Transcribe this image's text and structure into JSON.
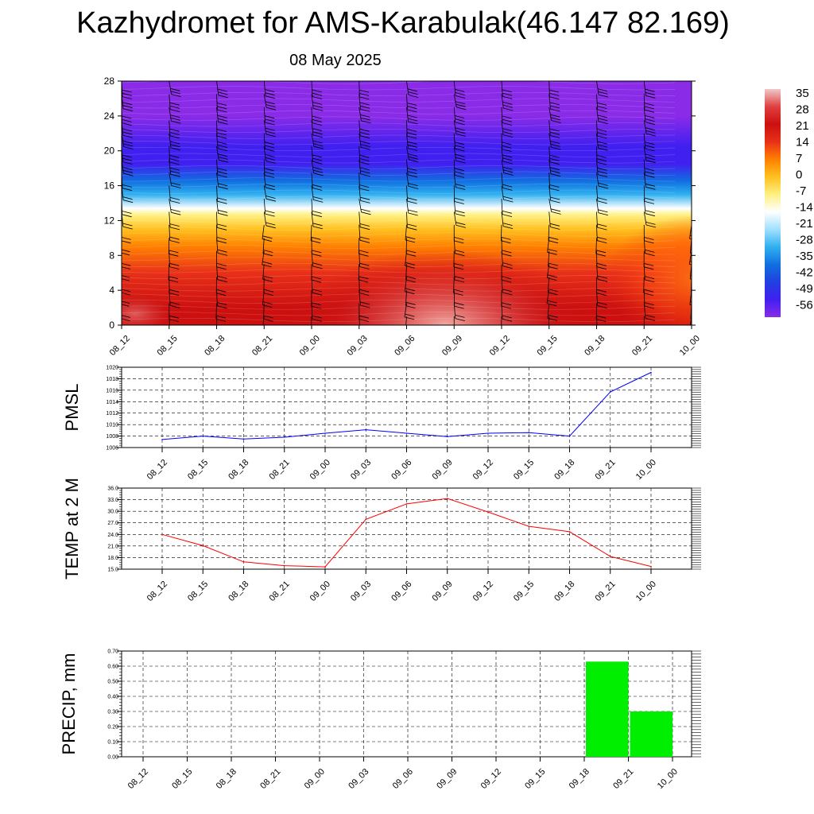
{
  "header": {
    "title": "Kazhydromet for AMS-Karabulak(46.147 82.169)",
    "subtitle": "08 May 2025"
  },
  "chart_data": [
    {
      "type": "heatmap",
      "title": "",
      "xlabel": "",
      "ylabel": "",
      "x_ticks": [
        "08_12",
        "08_15",
        "08_18",
        "08_21",
        "09_00",
        "09_03",
        "09_06",
        "09_09",
        "09_12",
        "09_15",
        "09_18",
        "09_21",
        "10_00"
      ],
      "y_ticks": [
        0,
        4,
        8,
        12,
        16,
        20,
        24,
        28
      ],
      "ylim": [
        0,
        28
      ],
      "colorbar": {
        "labels": [
          "35",
          "28",
          "21",
          "14",
          "7",
          "0",
          "-7",
          "-14",
          "-21",
          "-28",
          "-35",
          "-42",
          "-49",
          "-56"
        ],
        "stops": [
          {
            "value": 35,
            "color": "#f0c8c8"
          },
          {
            "value": 28,
            "color": "#e04040"
          },
          {
            "value": 21,
            "color": "#cc1010"
          },
          {
            "value": 14,
            "color": "#e83018"
          },
          {
            "value": 7,
            "color": "#ff8000"
          },
          {
            "value": 0,
            "color": "#ffc020"
          },
          {
            "value": -7,
            "color": "#fff080"
          },
          {
            "value": -14,
            "color": "#ffffff"
          },
          {
            "value": -21,
            "color": "#a0e0ff"
          },
          {
            "value": -28,
            "color": "#30b0f0"
          },
          {
            "value": -35,
            "color": "#1070e0"
          },
          {
            "value": -42,
            "color": "#2040e0"
          },
          {
            "value": -49,
            "color": "#4020f0"
          },
          {
            "value": -56,
            "color": "#8a2be8"
          }
        ]
      },
      "profile": [
        {
          "h": 0,
          "v": 24
        },
        {
          "h": 2,
          "v": 22
        },
        {
          "h": 6,
          "v": 17
        },
        {
          "h": 9,
          "v": 10
        },
        {
          "h": 11,
          "v": 0
        },
        {
          "h": 12.6,
          "v": -9
        },
        {
          "h": 13.4,
          "v": -15
        },
        {
          "h": 15,
          "v": -25
        },
        {
          "h": 16.5,
          "v": -35
        },
        {
          "h": 18.5,
          "v": -46
        },
        {
          "h": 20.5,
          "v": -52
        },
        {
          "h": 24,
          "v": -56
        },
        {
          "h": 28,
          "v": -57
        }
      ],
      "wind_barbs": true
    },
    {
      "type": "line",
      "ylabel": "PMSL",
      "categories": [
        "08_12",
        "08_15",
        "08_18",
        "08_21",
        "09_00",
        "09_03",
        "09_06",
        "09_09",
        "09_12",
        "09_15",
        "09_18",
        "09_21",
        "10_00"
      ],
      "series": [
        {
          "values": [
            1007.4,
            1008.0,
            1007.5,
            1007.8,
            1008.5,
            1009.1,
            1008.5,
            1007.9,
            1008.5,
            1008.6,
            1008.0,
            1015.7,
            1019.1
          ]
        }
      ],
      "ylim": [
        1006,
        1020
      ],
      "y_ticks": [
        "1006",
        "1008",
        "1010",
        "1012",
        "1014",
        "1016",
        "1018",
        "1020"
      ],
      "color": "#0000ff",
      "grid": true
    },
    {
      "type": "line",
      "ylabel": "TEMP at 2 M",
      "categories": [
        "08_12",
        "08_15",
        "08_18",
        "08_21",
        "09_00",
        "09_03",
        "09_06",
        "09_09",
        "09_12",
        "09_15",
        "09_18",
        "09_21",
        "10_00"
      ],
      "series": [
        {
          "values": [
            24.0,
            21.1,
            16.9,
            15.9,
            15.6,
            27.9,
            31.9,
            33.3,
            29.8,
            26.1,
            24.7,
            18.3,
            15.7
          ]
        }
      ],
      "ylim": [
        15,
        36
      ],
      "y_ticks": [
        "15.0",
        "18.0",
        "21.0",
        "24.0",
        "27.0",
        "30.0",
        "33.0",
        "36.0"
      ],
      "color": "#ff0000",
      "grid": true
    },
    {
      "type": "bar",
      "ylabel": "PRECIP, mm",
      "categories": [
        "08_12",
        "08_15",
        "08_18",
        "08_21",
        "09_00",
        "09_03",
        "09_06",
        "09_09",
        "09_12",
        "09_15",
        "09_18",
        "09_21",
        "10_00"
      ],
      "values": [
        0,
        0,
        0,
        0,
        0,
        0,
        0,
        0,
        0,
        0,
        0,
        0.63,
        0.3
      ],
      "ylim": [
        0,
        0.7
      ],
      "y_ticks": [
        "0.00",
        "0.10",
        "0.20",
        "0.30",
        "0.40",
        "0.50",
        "0.60",
        "0.70"
      ],
      "color": "#00ee00",
      "grid": true
    }
  ]
}
